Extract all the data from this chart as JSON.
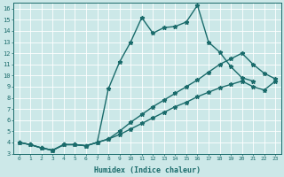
{
  "xlabel": "Humidex (Indice chaleur)",
  "xlim": [
    -0.5,
    23.5
  ],
  "ylim": [
    3,
    16.5
  ],
  "xticks": [
    0,
    1,
    2,
    3,
    4,
    5,
    6,
    7,
    8,
    9,
    10,
    11,
    12,
    13,
    14,
    15,
    16,
    17,
    18,
    19,
    20,
    21,
    22,
    23
  ],
  "yticks": [
    3,
    4,
    5,
    6,
    7,
    8,
    9,
    10,
    11,
    12,
    13,
    14,
    15,
    16
  ],
  "bg_color": "#cce8e8",
  "line_color": "#1a6b6b",
  "grid_color": "#b0d4d4",
  "line1_x": [
    0,
    1,
    2,
    3,
    4,
    5,
    6,
    7,
    8,
    9,
    10,
    11,
    12,
    13,
    14,
    15,
    16,
    17,
    18,
    19,
    20,
    21
  ],
  "line1_y": [
    4.0,
    3.8,
    3.5,
    3.3,
    3.8,
    3.8,
    3.7,
    4.0,
    8.8,
    11.2,
    13.0,
    15.2,
    13.8,
    14.3,
    14.4,
    14.8,
    16.3,
    13.0,
    12.1,
    10.8,
    9.8,
    9.5
  ],
  "line2_x": [
    0,
    1,
    2,
    3,
    4,
    5,
    6,
    7,
    8,
    9,
    10,
    11,
    12,
    13,
    14,
    15,
    16,
    17,
    18,
    19,
    20,
    21,
    22,
    23
  ],
  "line2_y": [
    4.0,
    3.8,
    3.5,
    3.3,
    3.8,
    3.8,
    3.7,
    4.0,
    4.3,
    5.0,
    5.8,
    6.5,
    7.2,
    7.8,
    8.4,
    9.0,
    9.6,
    10.3,
    11.0,
    11.5,
    12.0,
    11.0,
    10.2,
    9.7
  ],
  "line3_x": [
    0,
    1,
    2,
    3,
    4,
    5,
    6,
    7,
    8,
    9,
    10,
    11,
    12,
    13,
    14,
    15,
    16,
    17,
    18,
    19,
    20,
    21,
    22,
    23
  ],
  "line3_y": [
    4.0,
    3.8,
    3.5,
    3.3,
    3.8,
    3.8,
    3.7,
    4.0,
    4.3,
    4.7,
    5.2,
    5.7,
    6.2,
    6.7,
    7.2,
    7.6,
    8.1,
    8.5,
    8.9,
    9.2,
    9.5,
    9.0,
    8.7,
    9.5
  ],
  "markersize": 3.5,
  "linewidth": 1.0
}
